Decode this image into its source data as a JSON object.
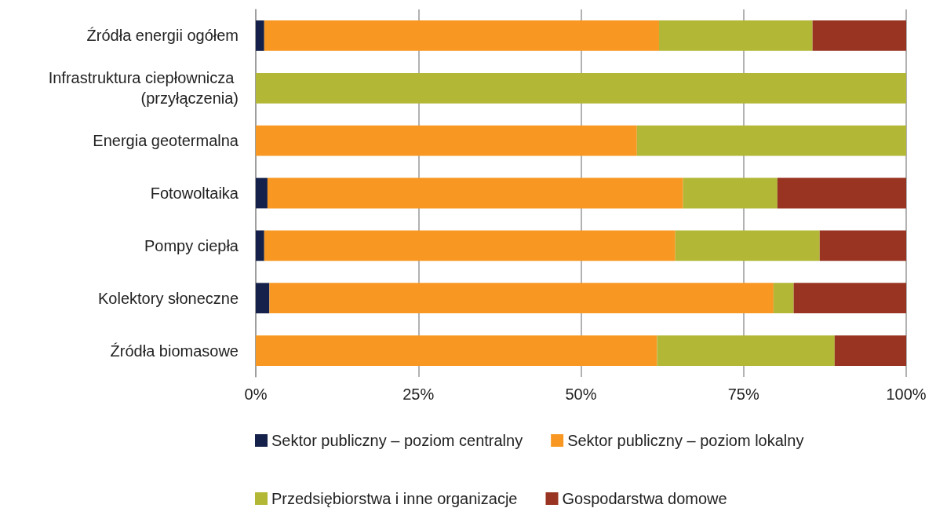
{
  "chart_data": {
    "type": "bar",
    "orientation": "horizontal",
    "stacked": true,
    "categories": [
      "Źródła energii ogółem",
      "Infrastruktura ciepłownicza (przyłączenia)",
      "Energia geotermalna",
      "Fotowoltaika",
      "Pompy ciepła",
      "Kolektory słoneczne",
      "Źródła biomasowe"
    ],
    "series": [
      {
        "name": "Sektor publiczny – poziom centralny",
        "color": "#15214a",
        "values": [
          1.3,
          0,
          0,
          1.8,
          1.3,
          2.1,
          0
        ]
      },
      {
        "name": "Sektor publiczny – poziom lokalny",
        "color": "#f89822",
        "values": [
          60.7,
          0,
          58.6,
          63.9,
          63.2,
          77.5,
          61.7
        ]
      },
      {
        "name": "Przedsiębiorstwa i inne organizacje",
        "color": "#b2b736",
        "values": [
          23.6,
          100,
          41.4,
          14.5,
          22.2,
          3.1,
          27.3
        ]
      },
      {
        "name": "Gospodarstwa domowe",
        "color": "#983421",
        "values": [
          14.4,
          0,
          0,
          19.8,
          13.3,
          17.3,
          11.0
        ]
      }
    ],
    "xlim": [
      0,
      100
    ],
    "xticks": [
      {
        "value": 0,
        "label": "0%"
      },
      {
        "value": 25,
        "label": "25%"
      },
      {
        "value": 50,
        "label": "50%"
      },
      {
        "value": 75,
        "label": "75%"
      },
      {
        "value": 100,
        "label": "100%"
      }
    ],
    "grid": "x",
    "legend": "bottom"
  }
}
